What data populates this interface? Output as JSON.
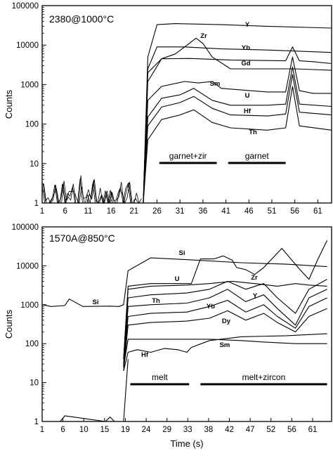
{
  "figure": {
    "xlabel": "Time (s)"
  },
  "chart_data": [
    {
      "type": "line",
      "title": "2380@1000°C",
      "xlabel": "",
      "ylabel": "Counts",
      "yscale": "log",
      "xlim": [
        1,
        64
      ],
      "ylim": [
        1,
        100000
      ],
      "xticks": [
        "1",
        "6",
        "11",
        "16",
        "21",
        "26",
        "31",
        "36",
        "41",
        "46",
        "51",
        "56",
        "61"
      ],
      "yticks": [
        "1",
        "10",
        "100",
        "1000",
        "10000",
        "100000"
      ],
      "grid": false,
      "series": [
        {
          "name": "Y",
          "x": [
            1,
            23,
            24,
            26,
            30,
            40,
            50,
            64
          ],
          "y": [
            1,
            1,
            5000,
            33000,
            35000,
            33000,
            30000,
            27000
          ]
        },
        {
          "name": "Zr",
          "x": [
            1,
            23,
            24,
            27,
            30,
            33,
            34.5,
            36,
            38,
            42,
            50,
            56,
            60,
            64
          ],
          "y": [
            1,
            1,
            2000,
            4500,
            6000,
            11000,
            15000,
            11000,
            5000,
            2500,
            2500,
            2500,
            2400,
            2300
          ]
        },
        {
          "name": "Yb",
          "x": [
            1,
            23,
            24,
            26,
            32,
            40,
            50,
            64
          ],
          "y": [
            1,
            1,
            2500,
            9000,
            9000,
            8000,
            7500,
            6500
          ]
        },
        {
          "name": "Gd",
          "x": [
            1,
            23,
            24,
            27,
            33,
            42,
            54,
            55.5,
            57,
            60,
            64
          ],
          "y": [
            1,
            1,
            1200,
            4500,
            4600,
            4200,
            4000,
            9000,
            4000,
            3800,
            3400
          ]
        },
        {
          "name": "Sm",
          "x": [
            1,
            23,
            24,
            27,
            32,
            35,
            38,
            40,
            50,
            54,
            55.5,
            57,
            60,
            64
          ],
          "y": [
            1,
            1,
            400,
            900,
            1200,
            1100,
            1200,
            800,
            650,
            650,
            5000,
            700,
            600,
            600
          ]
        },
        {
          "name": "U",
          "x": [
            1,
            23,
            24,
            27,
            31,
            34,
            38,
            42,
            50,
            54,
            55.5,
            57,
            64
          ],
          "y": [
            1,
            1,
            150,
            450,
            550,
            800,
            400,
            300,
            300,
            320,
            2800,
            320,
            280
          ]
        },
        {
          "name": "Hf",
          "x": [
            1,
            23,
            24,
            27,
            31,
            34,
            38,
            42,
            50,
            54,
            55.5,
            57,
            64
          ],
          "y": [
            1,
            1,
            90,
            270,
            350,
            500,
            250,
            170,
            160,
            180,
            1800,
            200,
            170
          ]
        },
        {
          "name": "Th",
          "x": [
            1,
            23,
            24,
            27,
            31,
            34,
            38,
            42,
            50,
            54,
            55.5,
            57,
            64
          ],
          "y": [
            1,
            1,
            40,
            130,
            170,
            230,
            110,
            80,
            70,
            80,
            900,
            90,
            70
          ]
        }
      ],
      "annotations": [
        {
          "label": "garnet+zir",
          "x_start": 26.5,
          "x_end": 39
        },
        {
          "label": "garnet",
          "x_start": 41.5,
          "x_end": 54
        }
      ]
    },
    {
      "type": "line",
      "title": "1570A@850°C",
      "xlabel": "Time (s)",
      "ylabel": "Counts",
      "yscale": "log",
      "xlim": [
        1,
        65
      ],
      "ylim": [
        1,
        100000
      ],
      "xticks": [
        "1",
        "6",
        "10",
        "15",
        "19",
        "24",
        "29",
        "33",
        "38",
        "42",
        "47",
        "52",
        "56",
        "61"
      ],
      "yticks": [
        "1",
        "10",
        "100",
        "1000",
        "10000",
        "100000"
      ],
      "grid": false,
      "series": [
        {
          "name": "Si",
          "x": [
            1,
            3,
            6,
            7,
            10,
            16,
            18,
            19,
            20,
            25,
            35,
            45,
            55,
            64
          ],
          "y": [
            1000,
            900,
            950,
            1400,
            900,
            920,
            900,
            1000,
            7500,
            16000,
            14000,
            12000,
            11000,
            9500
          ]
        },
        {
          "name": "Zr",
          "x": [
            19,
            20,
            25,
            34,
            36,
            39,
            41,
            43,
            44,
            46,
            48,
            50,
            54,
            58,
            60,
            62,
            64
          ],
          "y": [
            40,
            3000,
            3500,
            3500,
            15000,
            15000,
            18000,
            14000,
            9000,
            8000,
            6000,
            9000,
            28000,
            8000,
            4500,
            15000,
            45000
          ]
        },
        {
          "name": "U",
          "x": [
            19,
            20,
            25,
            33,
            38,
            43,
            48,
            53,
            57,
            60,
            64
          ],
          "y": [
            40,
            2500,
            3000,
            3200,
            3500,
            4000,
            3500,
            3000,
            3500,
            3200,
            3000
          ]
        },
        {
          "name": "Y",
          "x": [
            19,
            20,
            25,
            33,
            38,
            42,
            46,
            50,
            53,
            57,
            60,
            64
          ],
          "y": [
            30,
            1500,
            1800,
            2000,
            2500,
            4000,
            2500,
            3500,
            1500,
            600,
            2500,
            4500
          ]
        },
        {
          "name": "Th",
          "x": [
            19,
            20,
            25,
            33,
            38,
            42,
            46,
            50,
            53,
            57,
            60,
            64
          ],
          "y": [
            25,
            900,
            1000,
            1100,
            1500,
            2500,
            1200,
            1800,
            800,
            300,
            1500,
            2500
          ]
        },
        {
          "name": "Yb",
          "x": [
            19,
            20,
            25,
            33,
            38,
            42,
            46,
            50,
            53,
            57,
            60,
            64
          ],
          "y": [
            25,
            500,
            600,
            650,
            900,
            1300,
            650,
            1000,
            500,
            250,
            900,
            1500
          ]
        },
        {
          "name": "Dy",
          "x": [
            19,
            20,
            25,
            33,
            38,
            42,
            46,
            50,
            53,
            57,
            60,
            64
          ],
          "y": [
            20,
            300,
            350,
            380,
            450,
            700,
            400,
            600,
            350,
            200,
            500,
            800
          ]
        },
        {
          "name": "Sm",
          "x": [
            19,
            20,
            25,
            33,
            38,
            45,
            50,
            57,
            64
          ],
          "y": [
            25,
            130,
            130,
            130,
            130,
            120,
            110,
            100,
            100
          ]
        },
        {
          "name": "Hf",
          "x": [
            19,
            20,
            22,
            25,
            28,
            31,
            33,
            34,
            38,
            45,
            55,
            64
          ],
          "y": [
            20,
            60,
            70,
            60,
            75,
            70,
            60,
            80,
            120,
            150,
            160,
            180
          ]
        },
        {
          "name": "",
          "x": [
            1,
            5,
            6,
            15,
            16,
            17,
            18,
            19,
            20
          ],
          "y": [
            1,
            1,
            1.4,
            1,
            1.3,
            1,
            1,
            1,
            40
          ]
        }
      ],
      "annotations": [
        {
          "label": "melt",
          "x_start": 20.5,
          "x_end": 33.5
        },
        {
          "label": "melt+zircon",
          "x_start": 36,
          "x_end": 64
        }
      ]
    }
  ]
}
